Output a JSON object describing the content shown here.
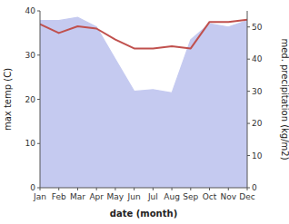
{
  "chart_data": {
    "type": "line",
    "xlabel": "date (month)",
    "ylabel": "max temp (C)",
    "y2label": "med. precipitation (kg/m2)",
    "categories": [
      "Jan",
      "Feb",
      "Mar",
      "Apr",
      "May",
      "Jun",
      "Jul",
      "Aug",
      "Sep",
      "Oct",
      "Nov",
      "Dec"
    ],
    "series": [
      {
        "type": "area",
        "axis": "y2",
        "color": "#c5caf0",
        "values": [
          52.0,
          52.0,
          53.0,
          50.0,
          40.0,
          30.0,
          30.5,
          29.5,
          46.0,
          51.0,
          50.0,
          52.0
        ]
      },
      {
        "type": "line",
        "color": "#c0504d",
        "values": [
          37.0,
          35.0,
          36.5,
          36.0,
          33.5,
          31.5,
          31.5,
          32.0,
          31.5,
          37.5,
          37.5,
          38.0
        ]
      }
    ],
    "ylim": [
      0,
      40
    ],
    "yticks": [
      0,
      10,
      20,
      30,
      40
    ],
    "y2lim": [
      0,
      55
    ],
    "y2ticks": [
      0,
      10,
      20,
      30,
      40,
      50
    ],
    "grid": false
  }
}
